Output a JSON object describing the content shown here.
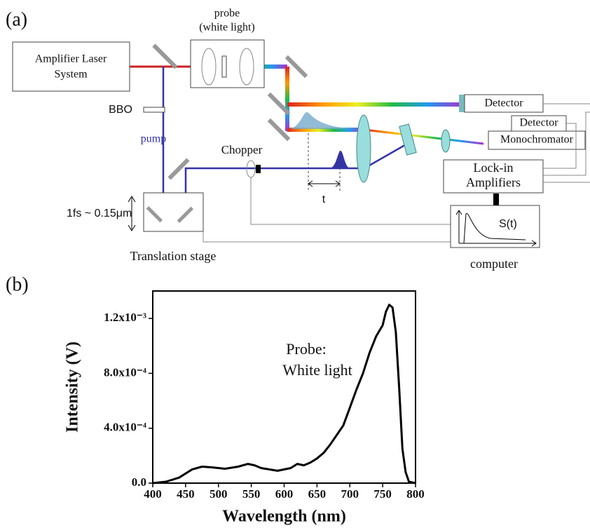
{
  "panel_labels": [
    "(a)",
    "(b)"
  ],
  "diagram": {
    "amplifier": [
      "Amplifier Laser",
      "System"
    ],
    "probe": [
      "probe",
      "(white light)"
    ],
    "bbo": "BBO",
    "pump": "pump",
    "chopper": "Chopper",
    "detector_1": "Detector",
    "detector_2": "Detector",
    "monochromator": "Monochromator",
    "lockin": [
      "Lock-in",
      "Amplifiers"
    ],
    "delay": "t",
    "stage_scale": "1fs ~ 0.15μm",
    "stage": "Translation stage",
    "signal": "S(t)",
    "computer": "computer"
  },
  "chart_data": {
    "type": "line",
    "x_label": "Wavelength (nm)",
    "y_label": "Intensity (V)",
    "annotations": [
      "Probe:",
      "White light"
    ],
    "color": "#000000",
    "x": [
      400,
      420,
      440,
      460,
      475,
      490,
      510,
      530,
      545,
      555,
      565,
      590,
      610,
      620,
      630,
      640,
      650,
      660,
      670,
      680,
      690,
      700,
      710,
      720,
      730,
      740,
      750,
      755,
      760,
      765,
      770,
      775,
      780,
      785,
      790,
      800
    ],
    "values": [
      0,
      1e-05,
      4e-05,
      0.0001,
      0.00012,
      0.000115,
      0.000105,
      0.00012,
      0.00014,
      0.00013,
      0.00011,
      9e-05,
      0.00011,
      0.00014,
      0.00013,
      0.00015,
      0.00018,
      0.00022,
      0.00028,
      0.00035,
      0.00042,
      0.00055,
      0.00068,
      0.0008,
      0.00095,
      0.00107,
      0.00115,
      0.00125,
      0.0013,
      0.00128,
      0.0011,
      0.0007,
      0.00025,
      8e-05,
      1e-05,
      0
    ],
    "xlim": [
      400,
      800
    ],
    "xticks": [
      400,
      450,
      500,
      550,
      600,
      650,
      700,
      750,
      800
    ],
    "ylim": [
      0,
      0.0014
    ],
    "yticks": [
      {
        "value": 0,
        "label": "0.0"
      },
      {
        "value": 0.0004,
        "label": "4.0x10⁻⁴"
      },
      {
        "value": 0.0008,
        "label": "8.0x10⁻⁴"
      },
      {
        "value": 0.0012,
        "label": "1.2x10⁻³"
      }
    ]
  }
}
